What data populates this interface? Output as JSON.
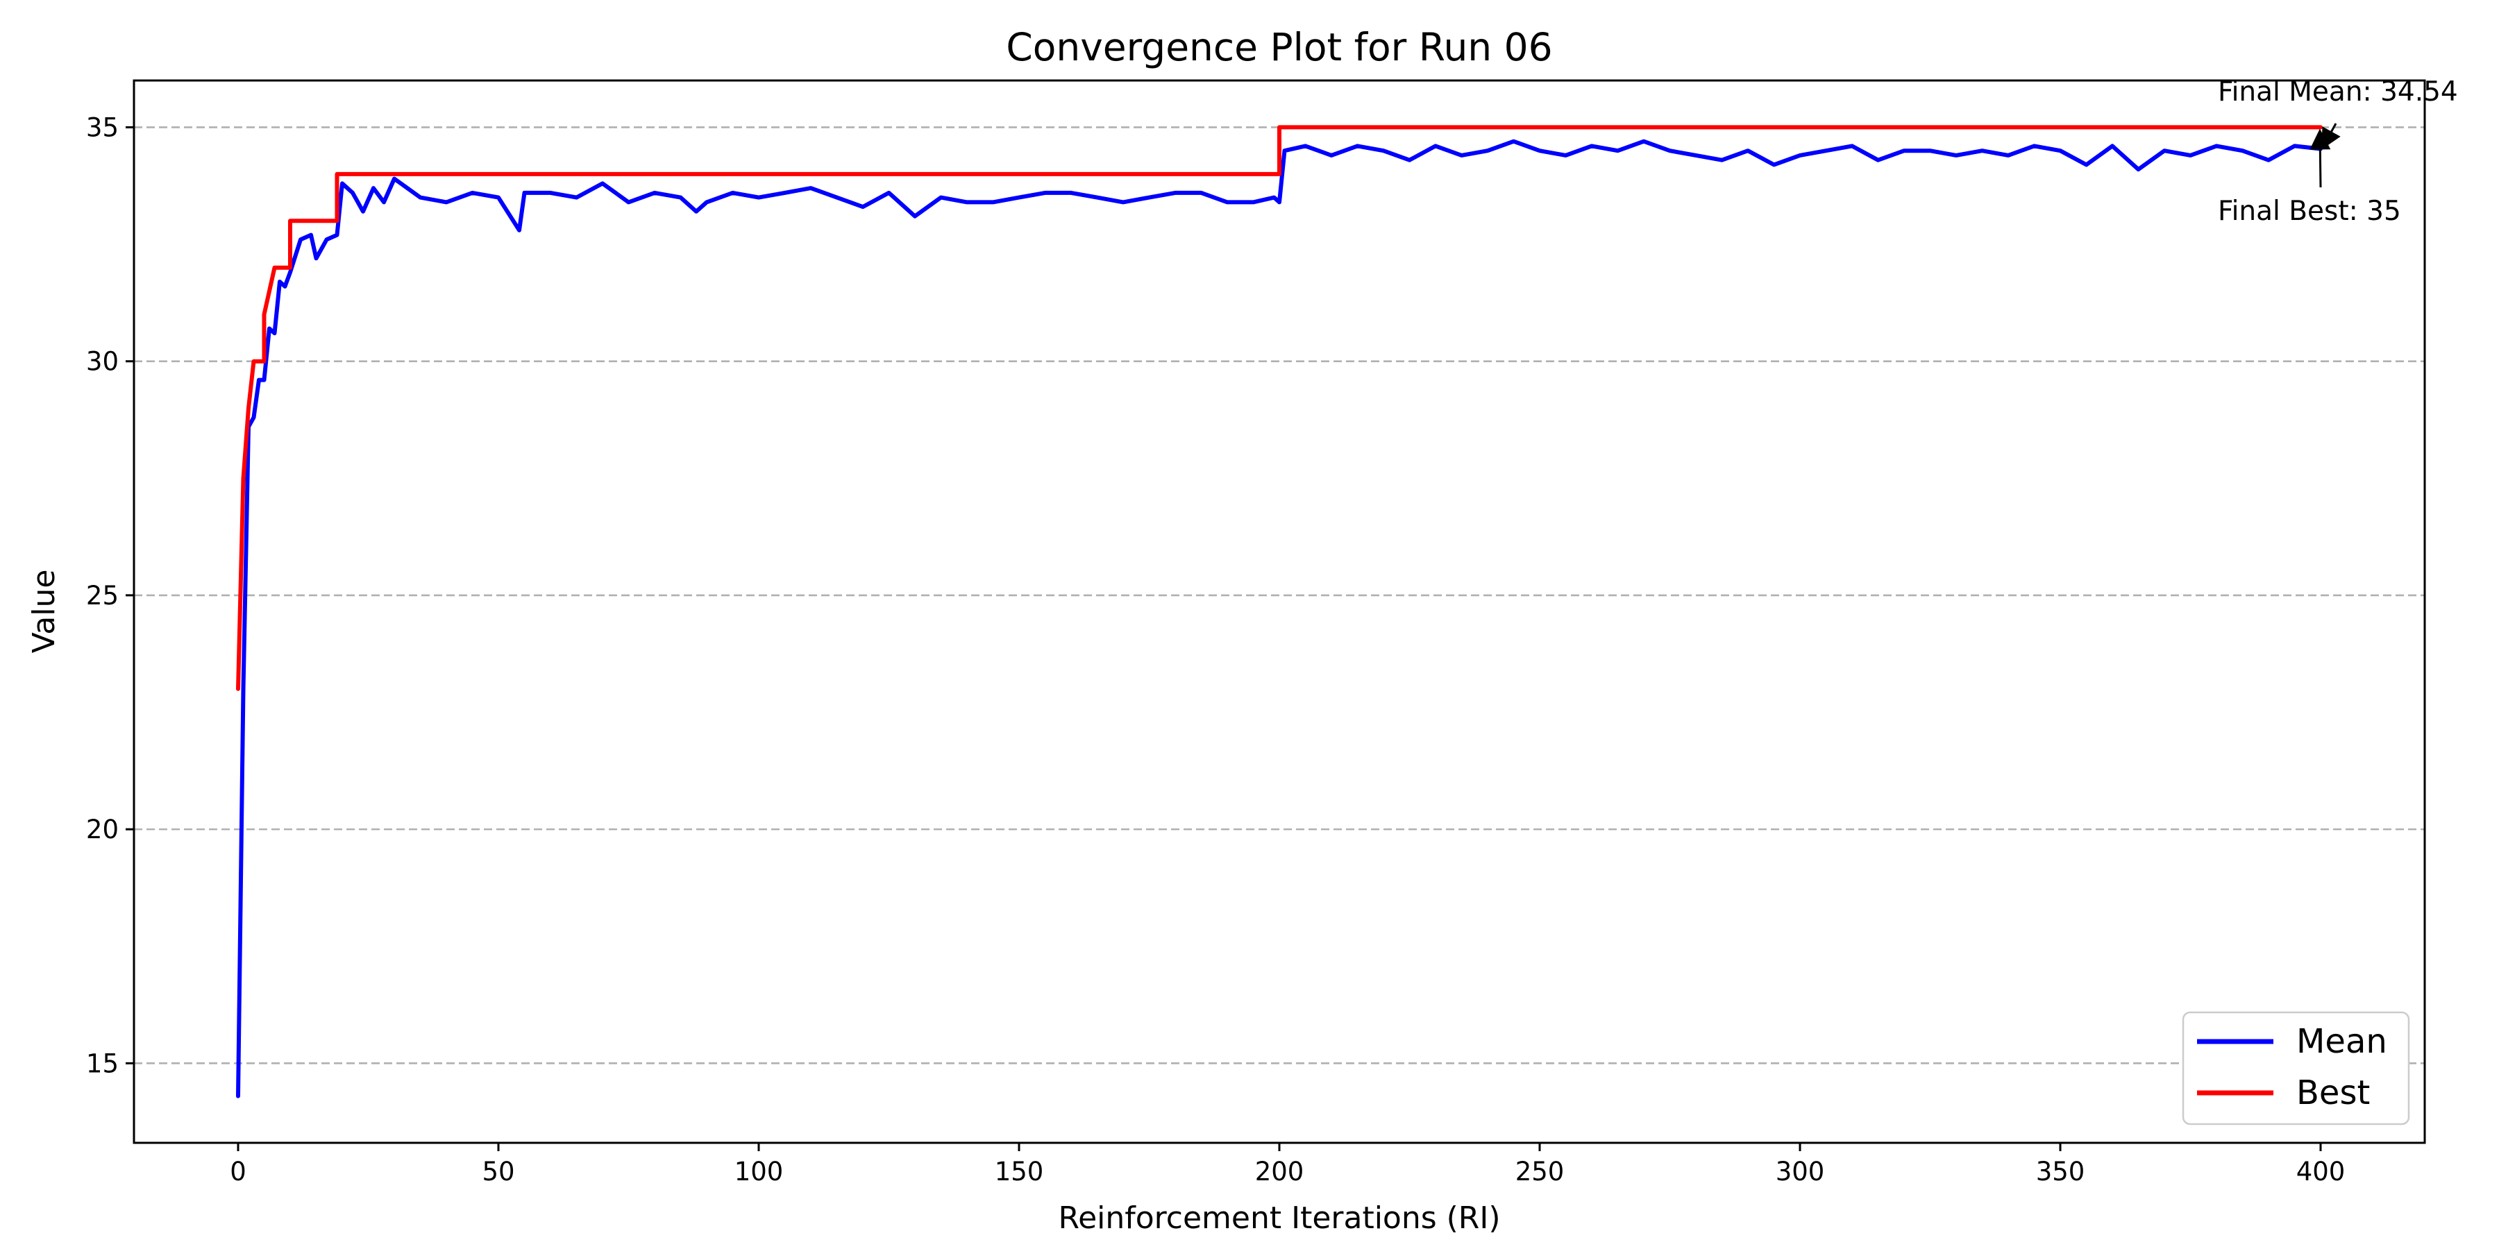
{
  "chart_data": {
    "type": "line",
    "title": "Convergence Plot for Run 06",
    "xlabel": "Reinforcement Iterations (RI)",
    "ylabel": "Value",
    "xlim": [
      -20,
      420
    ],
    "ylim": [
      13.3,
      36.0
    ],
    "x_ticks": [
      0,
      50,
      100,
      150,
      200,
      250,
      300,
      350,
      400
    ],
    "y_ticks": [
      15,
      20,
      25,
      30,
      35
    ],
    "grid": "y-dashed",
    "legend_position": "lower-right",
    "series": [
      {
        "name": "Mean",
        "color": "#0000ff",
        "x": [
          0,
          1,
          2,
          3,
          4,
          5,
          6,
          7,
          8,
          9,
          10,
          12,
          14,
          15,
          17,
          19,
          20,
          22,
          24,
          26,
          28,
          30,
          35,
          40,
          45,
          50,
          54,
          55,
          60,
          65,
          70,
          75,
          80,
          85,
          88,
          90,
          95,
          100,
          105,
          110,
          115,
          120,
          125,
          130,
          135,
          140,
          145,
          150,
          155,
          160,
          165,
          170,
          175,
          180,
          185,
          190,
          195,
          199,
          200,
          201,
          205,
          210,
          215,
          220,
          225,
          230,
          235,
          240,
          245,
          250,
          255,
          260,
          265,
          270,
          275,
          280,
          285,
          290,
          295,
          300,
          305,
          310,
          315,
          320,
          325,
          330,
          335,
          340,
          345,
          350,
          355,
          360,
          365,
          370,
          375,
          380,
          385,
          390,
          395,
          400
        ],
        "values": [
          14.3,
          23.0,
          28.6,
          28.8,
          29.6,
          29.6,
          30.7,
          30.6,
          31.7,
          31.6,
          31.9,
          32.6,
          32.7,
          32.2,
          32.6,
          32.7,
          33.8,
          33.6,
          33.2,
          33.7,
          33.4,
          33.9,
          33.5,
          33.4,
          33.6,
          33.5,
          32.8,
          33.6,
          33.6,
          33.5,
          33.8,
          33.4,
          33.6,
          33.5,
          33.2,
          33.4,
          33.6,
          33.5,
          33.6,
          33.7,
          33.5,
          33.3,
          33.6,
          33.1,
          33.5,
          33.4,
          33.4,
          33.5,
          33.6,
          33.6,
          33.5,
          33.4,
          33.5,
          33.6,
          33.6,
          33.4,
          33.4,
          33.5,
          33.4,
          34.5,
          34.6,
          34.4,
          34.6,
          34.5,
          34.3,
          34.6,
          34.4,
          34.5,
          34.7,
          34.5,
          34.4,
          34.6,
          34.5,
          34.7,
          34.5,
          34.4,
          34.3,
          34.5,
          34.2,
          34.4,
          34.5,
          34.6,
          34.3,
          34.5,
          34.5,
          34.4,
          34.5,
          34.4,
          34.6,
          34.5,
          34.2,
          34.6,
          34.1,
          34.5,
          34.4,
          34.6,
          34.5,
          34.3,
          34.6,
          34.54
        ]
      },
      {
        "name": "Best",
        "color": "#ff0000",
        "x": [
          0,
          1,
          2,
          3,
          3,
          5,
          5,
          7,
          7,
          10,
          10,
          19,
          19,
          200,
          200,
          400
        ],
        "values": [
          23,
          27.5,
          29.0,
          30,
          30,
          30,
          31,
          32,
          32,
          32,
          33,
          33,
          34,
          34,
          35,
          35
        ]
      }
    ],
    "annotations": [
      {
        "text": "Final Mean: 34.54",
        "target_x": 400,
        "target_y": 34.54
      },
      {
        "text": "Final Best: 35",
        "target_x": 400,
        "target_y": 35
      }
    ]
  }
}
